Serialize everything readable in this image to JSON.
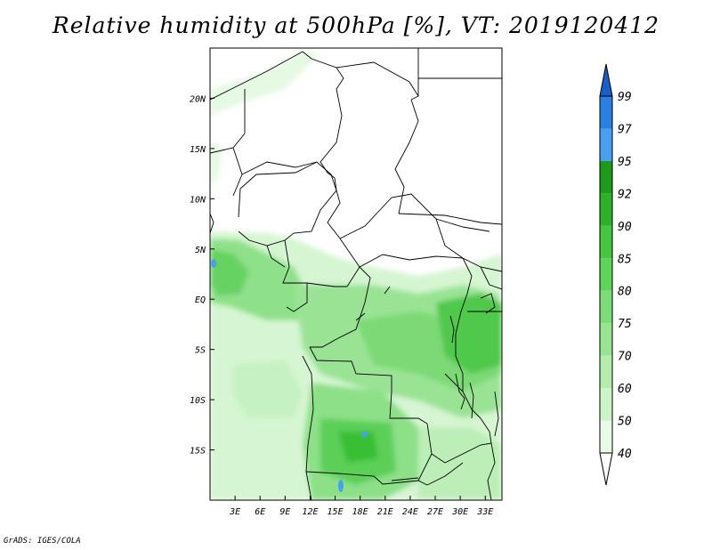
{
  "title": "Relative humidity at 500hPa [%], VT: 2019120412",
  "credit": "GrADS: IGES/COLA",
  "map": {
    "lon_range": [
      0,
      35
    ],
    "lat_range": [
      -20,
      25
    ],
    "lon_ticks": [
      "3E",
      "6E",
      "9E",
      "12E",
      "15E",
      "18E",
      "21E",
      "24E",
      "27E",
      "30E",
      "33E"
    ],
    "lat_ticks": [
      "20N",
      "15N",
      "10N",
      "5N",
      "EQ",
      "5S",
      "10S",
      "15S"
    ]
  },
  "colorbar": {
    "levels": [
      "40",
      "50",
      "60",
      "70",
      "75",
      "80",
      "85",
      "90",
      "92",
      "95",
      "97",
      "99"
    ],
    "colors": [
      "#ffffff",
      "#e8fbe6",
      "#cdf3c9",
      "#b4ecae",
      "#98e492",
      "#7cdc76",
      "#5fd45a",
      "#45c540",
      "#2fb02c",
      "#1e9a1c",
      "#4a9ff0",
      "#2b7fe0",
      "#1a5fc8"
    ]
  }
}
